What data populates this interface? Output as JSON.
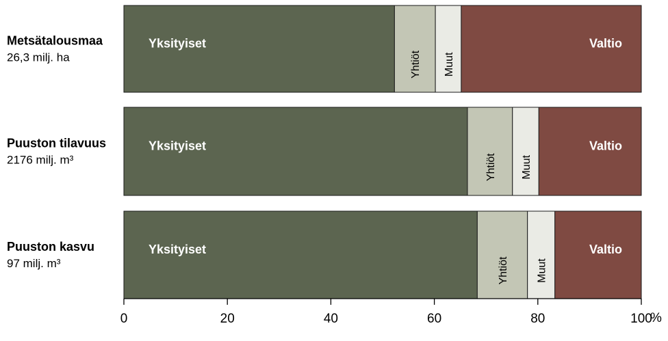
{
  "chart_data": {
    "type": "bar",
    "orientation": "horizontal",
    "stacked": true,
    "unit": "%",
    "xlim": [
      0,
      100
    ],
    "x_ticks": [
      0,
      20,
      40,
      60,
      80,
      100
    ],
    "grid": false,
    "categories": [
      {
        "title": "Metsätalousmaa",
        "subtitle": "26,3 milj. ha"
      },
      {
        "title": "Puuston tilavuus",
        "subtitle": "2176 milj. m³"
      },
      {
        "title": "Puuston kasvu",
        "subtitle": "97 milj. m³"
      }
    ],
    "series": [
      {
        "name": "Yksityiset",
        "color": "#5c6550",
        "label_color": "#ffffff",
        "label_style": "bold",
        "values": [
          52.3,
          66.4,
          68.3
        ]
      },
      {
        "name": "Yhtiöt",
        "color": "#c3c6b5",
        "label_color": "#000000",
        "label_style": "vertical",
        "values": [
          7.9,
          8.7,
          9.7
        ]
      },
      {
        "name": "Muut",
        "color": "#eaebe5",
        "label_color": "#000000",
        "label_style": "vertical",
        "values": [
          5.0,
          5.1,
          5.3
        ]
      },
      {
        "name": "Valtio",
        "color": "#7f4a42",
        "label_color": "#ffffff",
        "label_style": "bold",
        "values": [
          34.8,
          19.8,
          16.7
        ]
      }
    ]
  }
}
